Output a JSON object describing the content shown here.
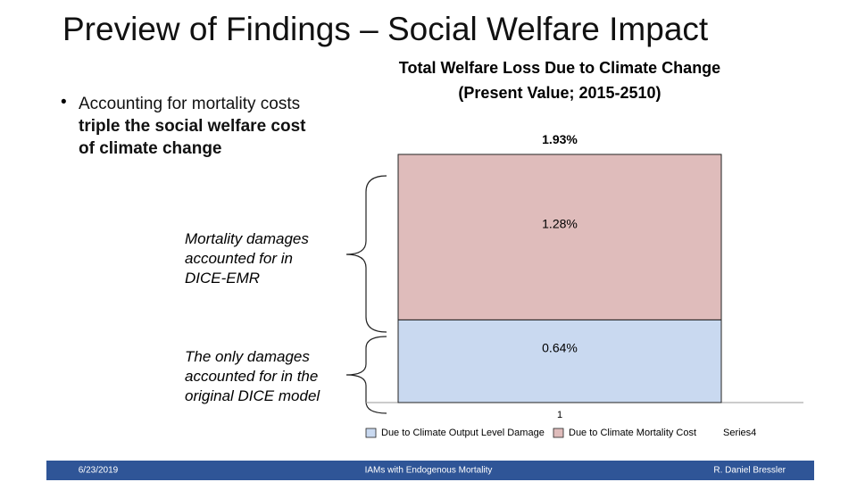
{
  "slide_title": "Preview of Findings – Social Welfare Impact",
  "bullet": {
    "text": "Accounting for mortality costs ",
    "bold": "triple the social welfare cost of climate change"
  },
  "annotations": [
    "Mortality damages accounted for in DICE-EMR",
    "The only damages accounted for in the original DICE model"
  ],
  "chart_data": {
    "type": "stacked_bar",
    "title": [
      "Total Welfare Loss Due to Climate Change",
      "(Present Value; 2015-2510)"
    ],
    "categories": [
      "1"
    ],
    "series": [
      {
        "name": "Due to Climate Output Level Damage",
        "color": "#c9d9f0",
        "values": [
          0.64
        ],
        "value_labels": [
          "0.64%"
        ]
      },
      {
        "name": "Due to Climate Mortality Cost",
        "color": "#dfbcbb",
        "values": [
          1.28
        ],
        "value_labels": [
          "1.28%"
        ]
      },
      {
        "name": "Series4",
        "values": [
          1.93
        ],
        "value_labels": [
          "1.93%"
        ]
      }
    ]
  },
  "footer": {
    "date": "6/23/2019",
    "center": "IAMs with Endogenous Mortality",
    "author": "R. Daniel Bressler"
  }
}
